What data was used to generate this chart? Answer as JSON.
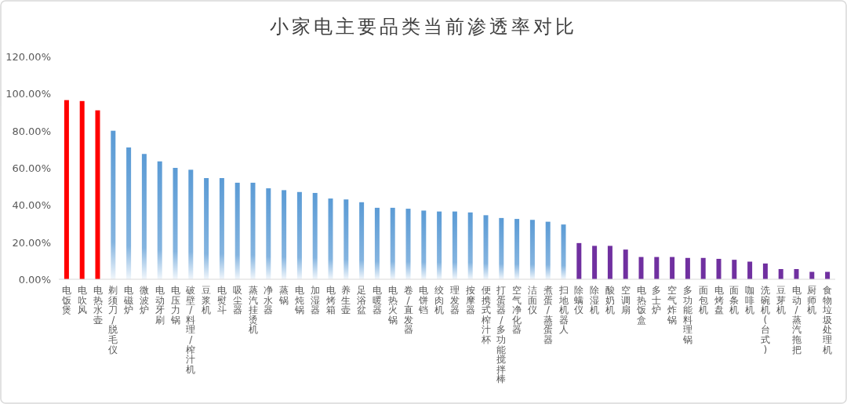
{
  "chart_data": {
    "type": "bar",
    "title": "小家电主要品类当前渗透率对比",
    "categories": [
      "电饭煲",
      "电吹风",
      "电热水壶",
      "剃须刀/脱毛仪",
      "电磁炉",
      "微波炉",
      "电动牙刷",
      "电压力锅",
      "破壁/料理/榨汁机",
      "豆浆机",
      "电熨斗",
      "吸尘器",
      "蒸汽挂烫机",
      "净水器",
      "蒸锅",
      "电炖锅",
      "加湿器",
      "电烤箱",
      "养生壶",
      "足浴盆",
      "电暖器",
      "电热火锅",
      "卷/直发器",
      "电饼铛",
      "绞肉机",
      "理发器",
      "按摩器",
      "便携式榨汁杯",
      "打蛋器/多功能搅拌棒",
      "空气净化器",
      "洁面仪",
      "煮蛋/蒸蛋器",
      "扫地机器人",
      "除螨仪",
      "除湿机",
      "酸奶机",
      "空调扇",
      "电热饭盒",
      "多士炉",
      "空气炸锅",
      "多功能料理锅",
      "面包机",
      "电烤盘",
      "面条机",
      "咖啡机",
      "洗碗机(台式)",
      "豆芽机",
      "电动/蒸汽拖把",
      "厨师机",
      "食物垃圾处理机"
    ],
    "values": [
      96.5,
      96,
      91,
      80,
      71,
      67.5,
      63.5,
      60,
      59,
      54.5,
      54.5,
      52,
      52,
      49,
      48,
      47,
      46.5,
      43.5,
      43,
      41.5,
      38.5,
      38.5,
      38,
      37,
      36.5,
      36.5,
      36,
      34.5,
      33,
      32.5,
      32,
      31,
      29.5,
      19.5,
      18,
      18,
      16,
      12,
      12,
      12,
      11.5,
      11.5,
      11,
      10.5,
      9.5,
      8.5,
      5.5,
      5.5,
      4,
      4
    ],
    "colors": [
      "#ff0000",
      "#ff0000",
      "#ff0000",
      "#5b9bd5",
      "#5b9bd5",
      "#5b9bd5",
      "#5b9bd5",
      "#5b9bd5",
      "#5b9bd5",
      "#5b9bd5",
      "#5b9bd5",
      "#5b9bd5",
      "#5b9bd5",
      "#5b9bd5",
      "#5b9bd5",
      "#5b9bd5",
      "#5b9bd5",
      "#5b9bd5",
      "#5b9bd5",
      "#5b9bd5",
      "#5b9bd5",
      "#5b9bd5",
      "#5b9bd5",
      "#5b9bd5",
      "#5b9bd5",
      "#5b9bd5",
      "#5b9bd5",
      "#5b9bd5",
      "#5b9bd5",
      "#5b9bd5",
      "#5b9bd5",
      "#5b9bd5",
      "#5b9bd5",
      "#7030a0",
      "#7030a0",
      "#7030a0",
      "#7030a0",
      "#7030a0",
      "#7030a0",
      "#7030a0",
      "#7030a0",
      "#7030a0",
      "#7030a0",
      "#7030a0",
      "#7030a0",
      "#7030a0",
      "#7030a0",
      "#7030a0",
      "#7030a0",
      "#7030a0"
    ],
    "ylim": [
      0,
      120
    ],
    "yticks": [
      {
        "value": 0,
        "label": "0.00%"
      },
      {
        "value": 20,
        "label": "20.00%"
      },
      {
        "value": 40,
        "label": "40.00%"
      },
      {
        "value": 60,
        "label": "60.00%"
      },
      {
        "value": 80,
        "label": "80.00%"
      },
      {
        "value": 100,
        "label": "100.00%"
      },
      {
        "value": 120,
        "label": "120.00%"
      }
    ]
  }
}
